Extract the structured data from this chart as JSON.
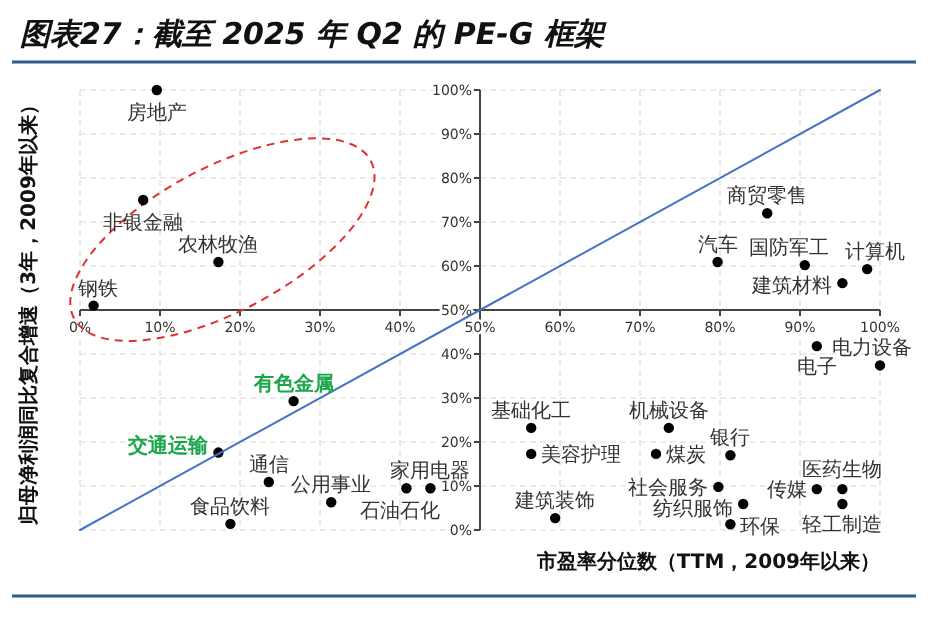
{
  "chart_data": {
    "type": "scatter",
    "title": "图表27：截至 2025 年 Q2 的 PE-G 框架",
    "xlabel": "市盈率分位数（TTM，2009年以来）",
    "ylabel": "归母净利润同比复合增速（3年，2009年以来）",
    "xlim": [
      0,
      100
    ],
    "ylim": [
      0,
      100
    ],
    "xticks": [
      {
        "value": 0,
        "label": "0%"
      },
      {
        "value": 10,
        "label": "10%"
      },
      {
        "value": 20,
        "label": "20%"
      },
      {
        "value": 30,
        "label": "30%"
      },
      {
        "value": 40,
        "label": "40%"
      },
      {
        "value": 50,
        "label": "50%"
      },
      {
        "value": 60,
        "label": "60%"
      },
      {
        "value": 70,
        "label": "70%"
      },
      {
        "value": 80,
        "label": "80%"
      },
      {
        "value": 90,
        "label": "90%"
      },
      {
        "value": 100,
        "label": "100%"
      }
    ],
    "yticks": [
      {
        "value": 0,
        "label": "0%"
      },
      {
        "value": 10,
        "label": "10%"
      },
      {
        "value": 20,
        "label": "20%"
      },
      {
        "value": 30,
        "label": "30%"
      },
      {
        "value": 40,
        "label": "40%"
      },
      {
        "value": 50,
        "label": "50%"
      },
      {
        "value": 60,
        "label": "60%"
      },
      {
        "value": 70,
        "label": "70%"
      },
      {
        "value": 80,
        "label": "80%"
      },
      {
        "value": 90,
        "label": "90%"
      },
      {
        "value": 100,
        "label": "100%"
      }
    ],
    "grid": true,
    "series": [
      {
        "marker": "circle",
        "color": "#000000",
        "x": [
          9.6,
          7.9,
          17.3,
          1.7,
          85.9,
          79.7,
          90.6,
          98.4,
          95.3,
          26.7,
          17.3,
          23.6,
          31.4,
          40.8,
          43.8,
          18.8,
          92.1,
          100,
          56.4,
          56.4,
          73.6,
          72,
          81.3,
          79.8,
          82.9,
          81.3,
          59.4,
          92.1,
          95.3,
          95.3
        ],
        "values": [
          100,
          75,
          60.9,
          51,
          72,
          60.9,
          60.2,
          59.3,
          56.1,
          29.3,
          17.6,
          10.9,
          6.3,
          9.5,
          9.5,
          1.4,
          41.8,
          37.4,
          23.2,
          17.3,
          23.2,
          17.3,
          17,
          9.8,
          5.9,
          1.3,
          2.7,
          9.3,
          9.3,
          5.9
        ]
      },
      {
        "type": "line",
        "color": "#4472c4",
        "x": [
          0,
          100
        ],
        "values": [
          0,
          100
        ],
        "line_style": "solid"
      }
    ],
    "annotations": [
      {
        "text": "房地产",
        "x": 9.6,
        "y": 100
      },
      {
        "text": "非银金融",
        "x": 7.9,
        "y": 75
      },
      {
        "text": "农林牧渔",
        "x": 17.3,
        "y": 60.9
      },
      {
        "text": "钢铁",
        "x": 1.7,
        "y": 51
      },
      {
        "text": "商贸零售",
        "x": 85.9,
        "y": 72
      },
      {
        "text": "汽车",
        "x": 79.7,
        "y": 60.9
      },
      {
        "text": "国防军工",
        "x": 90.6,
        "y": 60.2
      },
      {
        "text": "计算机",
        "x": 98.4,
        "y": 59.3
      },
      {
        "text": "建筑材料",
        "x": 95.3,
        "y": 56.1
      },
      {
        "text": "有色金属",
        "x": 26.7,
        "y": 29.3
      },
      {
        "text": "交通运输",
        "x": 17.3,
        "y": 17.6
      },
      {
        "text": "通信",
        "x": 23.6,
        "y": 10.9
      },
      {
        "text": "公用事业",
        "x": 31.4,
        "y": 6.3
      },
      {
        "text": "石油石化",
        "x": 40.8,
        "y": 9.5
      },
      {
        "text": "家用电器",
        "x": 43.8,
        "y": 9.5
      },
      {
        "text": "食品饮料",
        "x": 18.8,
        "y": 1.4
      },
      {
        "text": "电子",
        "x": 92.1,
        "y": 41.8
      },
      {
        "text": "电力设备",
        "x": 100,
        "y": 37.4
      },
      {
        "text": "基础化工",
        "x": 56.4,
        "y": 23.2
      },
      {
        "text": "美容护理",
        "x": 56.4,
        "y": 17.3
      },
      {
        "text": "机械设备",
        "x": 73.6,
        "y": 23.2
      },
      {
        "text": "煤炭",
        "x": 72,
        "y": 17.3
      },
      {
        "text": "银行",
        "x": 81.3,
        "y": 17
      },
      {
        "text": "社会服务",
        "x": 79.8,
        "y": 9.8
      },
      {
        "text": "纺织服饰",
        "x": 82.9,
        "y": 5.9
      },
      {
        "text": "环保",
        "x": 81.3,
        "y": 1.3
      },
      {
        "text": "建筑装饰",
        "x": 59.4,
        "y": 2.7
      },
      {
        "text": "传媒",
        "x": 92.1,
        "y": 9.3
      },
      {
        "text": "医药生物",
        "x": 95.3,
        "y": 9.3
      },
      {
        "text": "轻工制造",
        "x": 95.3,
        "y": 5.9
      }
    ]
  }
}
